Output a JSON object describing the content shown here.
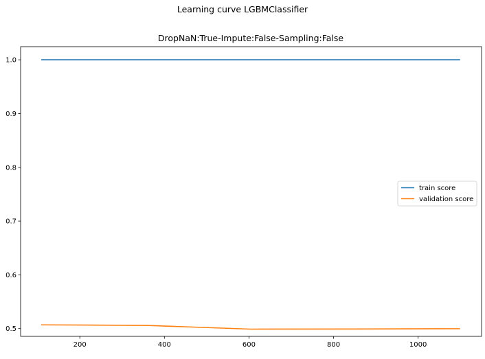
{
  "figure": {
    "suptitle": "Learning curve LGBMClassifier"
  },
  "chart_data": {
    "type": "line",
    "title": "DropNaN:True-Impute:False-Sampling:False",
    "xlabel": "",
    "ylabel": "",
    "xlim": [
      60,
      1150
    ],
    "ylim": [
      0.4856,
      1.0244
    ],
    "xticks": [
      200,
      400,
      600,
      800,
      1000
    ],
    "yticks": [
      0.5,
      0.6,
      0.7,
      0.8,
      0.9,
      1.0
    ],
    "xtick_labels": [
      "200",
      "400",
      "600",
      "800",
      "1000"
    ],
    "ytick_labels": [
      "0.5",
      "0.6",
      "0.7",
      "0.8",
      "0.9",
      "1.0"
    ],
    "grid": false,
    "legend_position": "center-right",
    "series": [
      {
        "name": "train score",
        "color": "#1f77b4",
        "x": [
          110,
          357,
          604,
          851,
          1098
        ],
        "y": [
          1.0,
          1.0,
          1.0,
          1.0,
          1.0
        ]
      },
      {
        "name": "validation score",
        "color": "#ff7f0e",
        "x": [
          110,
          357,
          604,
          851,
          1098
        ],
        "y": [
          0.507,
          0.506,
          0.499,
          0.4993,
          0.4998
        ]
      }
    ]
  }
}
